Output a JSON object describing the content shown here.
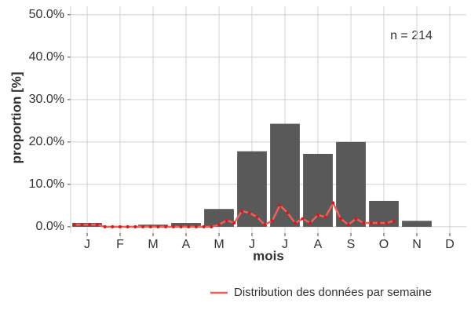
{
  "chart_data": {
    "type": "bar",
    "y_label": "proportion [%]",
    "x_label": "mois",
    "annotation": "n = 214",
    "categories": [
      "J",
      "F",
      "M",
      "A",
      "M",
      "J",
      "J",
      "A",
      "S",
      "O",
      "N",
      "D"
    ],
    "values": [
      0.9,
      0,
      0.5,
      0.9,
      4.2,
      17.8,
      24.3,
      17.2,
      20.0,
      6.1,
      1.4,
      0
    ],
    "color": "#595959",
    "ylim": [
      -1.5,
      52
    ],
    "yticks": [
      {
        "value": 0,
        "label": "0.0%"
      },
      {
        "value": 10,
        "label": "10.0%"
      },
      {
        "value": 20,
        "label": "20.0%"
      },
      {
        "value": 30,
        "label": "30.0%"
      },
      {
        "value": 40,
        "label": "40.0%"
      },
      {
        "value": 50,
        "label": "50.0%"
      }
    ],
    "grid": true,
    "line": {
      "name": "Distribution des données par semaine",
      "color": "#f0605a",
      "point_color": "#d7191c",
      "x": [
        1,
        2,
        3,
        4,
        5,
        6,
        7,
        8,
        9,
        10,
        11,
        12,
        13,
        14,
        15,
        16,
        17,
        18,
        19,
        20,
        21,
        22,
        23,
        24,
        25,
        26,
        27,
        28,
        29,
        30,
        31,
        32,
        33,
        34,
        35,
        36,
        37,
        38,
        39,
        40,
        41,
        42,
        43
      ],
      "values": [
        0.5,
        0.5,
        0.5,
        0.5,
        0,
        0,
        0,
        0,
        0,
        0,
        0,
        0,
        0,
        0,
        0,
        0,
        0,
        0,
        0,
        0.5,
        1.5,
        0.9,
        3.7,
        3.3,
        2.3,
        0.5,
        1.4,
        5.1,
        3.3,
        0.9,
        1.9,
        0.9,
        2.8,
        2.3,
        5.6,
        1.9,
        0.5,
        1.9,
        0.9,
        0.9,
        0.9,
        0.9,
        1.4
      ],
      "weeks_per_year": 52
    },
    "legend": "bottom-right"
  }
}
